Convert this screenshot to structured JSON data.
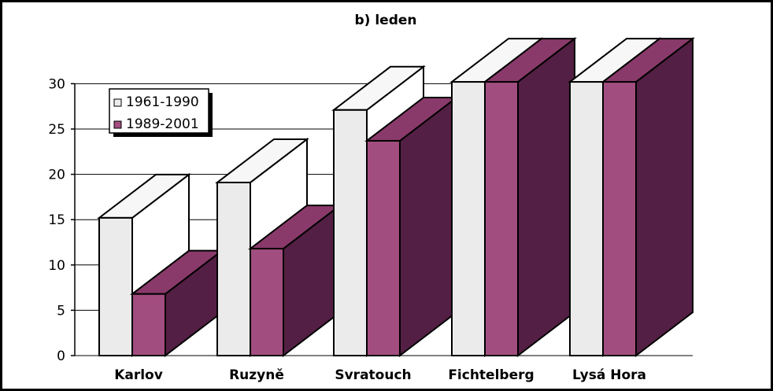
{
  "chart_data": {
    "type": "bar",
    "title": "b) leden",
    "categories": [
      "Karlov",
      "Ruzyně",
      "Svratouch",
      "Fichtelberg",
      "Lysá Hora"
    ],
    "series": [
      {
        "name": "1961-1990",
        "values": [
          15.2,
          19.1,
          27.1,
          30.2,
          30.2
        ],
        "color": "#ebebeb",
        "top_color": "#f7f7f7",
        "side_color": "#ffffff"
      },
      {
        "name": "1989-2001",
        "values": [
          6.8,
          11.8,
          23.7,
          30.2,
          30.2
        ],
        "color": "#a24d7f",
        "top_color": "#8a3a6a",
        "side_color": "#541f44"
      }
    ],
    "yticks": [
      "0",
      "5",
      "10",
      "15",
      "20",
      "25",
      "30"
    ],
    "ylim": [
      0,
      30
    ],
    "grid": true,
    "legend_position": "top-left",
    "style": "3d-clustered-bar"
  }
}
